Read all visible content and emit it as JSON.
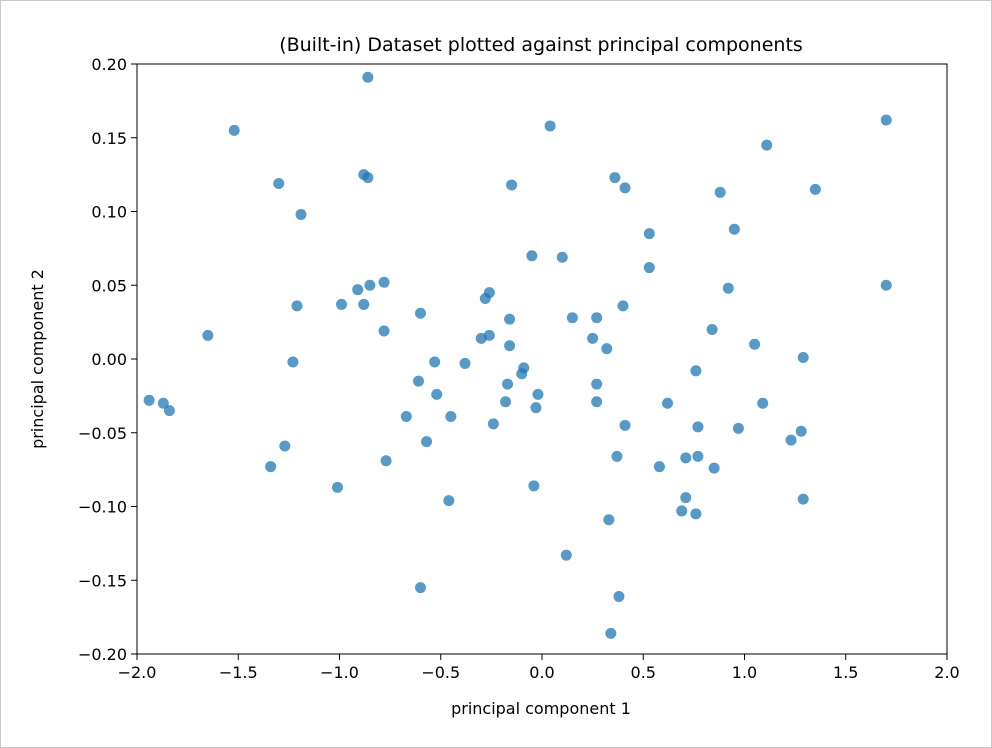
{
  "chart_data": {
    "type": "scatter",
    "title": "(Built-in) Dataset plotted against principal components",
    "xlabel": "principal component 1",
    "ylabel": "principal component 2",
    "xlim": [
      -2.0,
      2.0
    ],
    "ylim": [
      -0.2,
      0.2
    ],
    "xticks": [
      -2.0,
      -1.5,
      -1.0,
      -0.5,
      0.0,
      0.5,
      1.0,
      1.5,
      2.0
    ],
    "xtick_labels": [
      "−2.0",
      "−1.5",
      "−1.0",
      "−0.5",
      "0.0",
      "0.5",
      "1.0",
      "1.5",
      "2.0"
    ],
    "yticks": [
      -0.2,
      -0.15,
      -0.1,
      -0.05,
      0.0,
      0.05,
      0.1,
      0.15,
      0.2
    ],
    "ytick_labels": [
      "−0.20",
      "−0.15",
      "−0.10",
      "−0.05",
      "0.00",
      "0.05",
      "0.10",
      "0.15",
      "0.20"
    ],
    "grid": false,
    "marker_color": "#1f77b4",
    "series": [
      {
        "points": [
          [
            -0.86,
            0.191
          ],
          [
            0.04,
            0.158
          ],
          [
            -1.52,
            0.155
          ],
          [
            1.7,
            0.162
          ],
          [
            1.11,
            0.145
          ],
          [
            -1.3,
            0.119
          ],
          [
            -0.88,
            0.125
          ],
          [
            -0.86,
            0.123
          ],
          [
            -0.15,
            0.118
          ],
          [
            0.36,
            0.123
          ],
          [
            0.41,
            0.116
          ],
          [
            0.88,
            0.113
          ],
          [
            1.35,
            0.115
          ],
          [
            -1.19,
            0.098
          ],
          [
            0.95,
            0.088
          ],
          [
            0.53,
            0.085
          ],
          [
            -0.05,
            0.07
          ],
          [
            0.1,
            0.069
          ],
          [
            0.53,
            0.062
          ],
          [
            -0.78,
            0.052
          ],
          [
            -0.85,
            0.05
          ],
          [
            -0.91,
            0.047
          ],
          [
            1.7,
            0.05
          ],
          [
            0.92,
            0.048
          ],
          [
            -0.26,
            0.045
          ],
          [
            -0.28,
            0.041
          ],
          [
            -0.99,
            0.037
          ],
          [
            -0.88,
            0.037
          ],
          [
            -1.21,
            0.036
          ],
          [
            0.4,
            0.036
          ],
          [
            -0.6,
            0.031
          ],
          [
            0.15,
            0.028
          ],
          [
            0.27,
            0.028
          ],
          [
            -0.16,
            0.027
          ],
          [
            -0.78,
            0.019
          ],
          [
            0.84,
            0.02
          ],
          [
            -1.65,
            0.016
          ],
          [
            -0.26,
            0.016
          ],
          [
            -0.3,
            0.014
          ],
          [
            0.25,
            0.014
          ],
          [
            1.05,
            0.01
          ],
          [
            -0.16,
            0.009
          ],
          [
            0.32,
            0.007
          ],
          [
            -1.23,
            -0.002
          ],
          [
            -0.53,
            -0.002
          ],
          [
            -0.38,
            -0.003
          ],
          [
            1.29,
            0.001
          ],
          [
            -0.09,
            -0.006
          ],
          [
            -0.1,
            -0.01
          ],
          [
            0.76,
            -0.008
          ],
          [
            -0.61,
            -0.015
          ],
          [
            -0.17,
            -0.017
          ],
          [
            0.27,
            -0.017
          ],
          [
            -0.52,
            -0.024
          ],
          [
            -0.02,
            -0.024
          ],
          [
            -1.94,
            -0.028
          ],
          [
            -1.87,
            -0.03
          ],
          [
            -1.84,
            -0.035
          ],
          [
            -0.18,
            -0.029
          ],
          [
            -0.03,
            -0.033
          ],
          [
            0.27,
            -0.029
          ],
          [
            0.62,
            -0.03
          ],
          [
            1.09,
            -0.03
          ],
          [
            -0.67,
            -0.039
          ],
          [
            -0.45,
            -0.039
          ],
          [
            -0.24,
            -0.044
          ],
          [
            0.41,
            -0.045
          ],
          [
            0.77,
            -0.046
          ],
          [
            0.97,
            -0.047
          ],
          [
            1.28,
            -0.049
          ],
          [
            1.23,
            -0.055
          ],
          [
            -0.57,
            -0.056
          ],
          [
            -1.27,
            -0.059
          ],
          [
            0.37,
            -0.066
          ],
          [
            0.71,
            -0.067
          ],
          [
            0.77,
            -0.066
          ],
          [
            -0.77,
            -0.069
          ],
          [
            -1.34,
            -0.073
          ],
          [
            0.58,
            -0.073
          ],
          [
            0.85,
            -0.074
          ],
          [
            -1.01,
            -0.087
          ],
          [
            -0.04,
            -0.086
          ],
          [
            -0.46,
            -0.096
          ],
          [
            0.71,
            -0.094
          ],
          [
            1.29,
            -0.095
          ],
          [
            0.69,
            -0.103
          ],
          [
            0.76,
            -0.105
          ],
          [
            0.33,
            -0.109
          ],
          [
            0.12,
            -0.133
          ],
          [
            -0.6,
            -0.155
          ],
          [
            0.38,
            -0.161
          ],
          [
            0.34,
            -0.186
          ]
        ]
      }
    ]
  }
}
